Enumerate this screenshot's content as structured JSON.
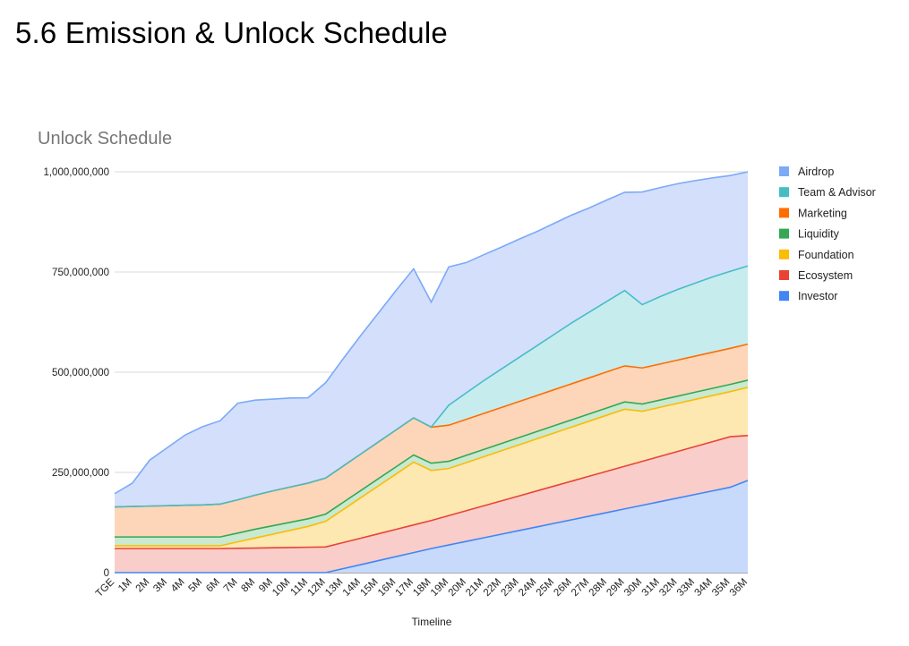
{
  "page": {
    "title": "5.6 Emission & Unlock Schedule"
  },
  "chart_data": {
    "type": "area",
    "stacked": true,
    "title": "Unlock Schedule",
    "xlabel": "Timeline",
    "ylabel": "",
    "ylim": [
      0,
      1000000000
    ],
    "yticks": [
      {
        "value": 0,
        "label": "0"
      },
      {
        "value": 250000000,
        "label": "250,000,000"
      },
      {
        "value": 500000000,
        "label": "500,000,000"
      },
      {
        "value": 750000000,
        "label": "750,000,000"
      },
      {
        "value": 1000000000,
        "label": "1,000,000,000"
      }
    ],
    "grid": true,
    "legend": "right",
    "categories": [
      "TGE",
      "1M",
      "2M",
      "3M",
      "4M",
      "5M",
      "6M",
      "7M",
      "8M",
      "9M",
      "10M",
      "11M",
      "12M",
      "13M",
      "14M",
      "15M",
      "16M",
      "17M",
      "18M",
      "19M",
      "20M",
      "21M",
      "22M",
      "23M",
      "24M",
      "25M",
      "26M",
      "27M",
      "28M",
      "29M",
      "30M",
      "31M",
      "32M",
      "33M",
      "34M",
      "35M",
      "36M"
    ],
    "series": [
      {
        "name": "Investor",
        "color": "#4285f4",
        "fill": "#c7dafb",
        "values": [
          0,
          0,
          0,
          0,
          0,
          0,
          0,
          0,
          0,
          0,
          0,
          0,
          0,
          10000000,
          20000000,
          30000000,
          40000000,
          50000000,
          60000000,
          69000000,
          78000000,
          87000000,
          96000000,
          105000000,
          114000000,
          123000000,
          132000000,
          141000000,
          150000000,
          159000000,
          168000000,
          177000000,
          186000000,
          195000000,
          204000000,
          213000000,
          230000000
        ]
      },
      {
        "name": "Ecosystem",
        "color": "#ea4335",
        "fill": "#f9cdca",
        "values": [
          60000000,
          60000000,
          60000000,
          60000000,
          60000000,
          60000000,
          60000000,
          60667000,
          61334000,
          62001000,
          62668000,
          63335000,
          64000000,
          65000000,
          66000000,
          67000000,
          68000000,
          69000000,
          70000000,
          73300000,
          76600000,
          79900000,
          83200000,
          86500000,
          89800000,
          93100000,
          96400000,
          99700000,
          103000000,
          106300000,
          109600000,
          112900000,
          116200000,
          119500000,
          122800000,
          126100000,
          112000000
        ]
      },
      {
        "name": "Foundation",
        "color": "#fbbc04",
        "fill": "#fde8b2",
        "values": [
          7000000,
          7000000,
          7000000,
          7000000,
          7000000,
          7000000,
          7000000,
          16000000,
          25000000,
          34000000,
          43000000,
          52000000,
          64000000,
          82500000,
          101000000,
          119500000,
          138000000,
          156500000,
          125000000,
          117500000,
          120000000,
          122500000,
          125000000,
          127500000,
          130000000,
          132500000,
          135000000,
          137500000,
          140000000,
          142500000,
          125000000,
          122500000,
          120000000,
          117500000,
          115000000,
          112500000,
          120000000
        ]
      },
      {
        "name": "Liquidity",
        "color": "#34a853",
        "fill": "#c9e9d0",
        "values": [
          22000000,
          22000000,
          22000000,
          22000000,
          22000000,
          22000000,
          22000000,
          22000000,
          22000000,
          21000000,
          20000000,
          19000000,
          18000000,
          18000000,
          18000000,
          18000000,
          18000000,
          18000000,
          18000000,
          18000000,
          18000000,
          18000000,
          18000000,
          18000000,
          18000000,
          18000000,
          18000000,
          18000000,
          18000000,
          18000000,
          18000000,
          18000000,
          18000000,
          18000000,
          18000000,
          18000000,
          18000000
        ]
      },
      {
        "name": "Marketing",
        "color": "#ff6d01",
        "fill": "#fdd6b9",
        "values": [
          75000000,
          76000000,
          77000000,
          78000000,
          79000000,
          80000000,
          82000000,
          83000000,
          85000000,
          87000000,
          88000000,
          89000000,
          90000000,
          90500000,
          91000000,
          91500000,
          92000000,
          92500000,
          90000000,
          90000000,
          90000000,
          90000000,
          90000000,
          90000000,
          90000000,
          90000000,
          90000000,
          90000000,
          90000000,
          90000000,
          90000000,
          90000000,
          90000000,
          90000000,
          90000000,
          90000000,
          90000000
        ]
      },
      {
        "name": "Team & Advisor",
        "color": "#46bdc6",
        "fill": "#c7ecee",
        "values": [
          0,
          0,
          0,
          0,
          0,
          0,
          0,
          0,
          0,
          0,
          0,
          0,
          0,
          0,
          0,
          0,
          0,
          0,
          0,
          50000000,
          66000000,
          82000000,
          96000000,
          110000000,
          124000000,
          138000000,
          152000000,
          164000000,
          176000000,
          188000000,
          158000000,
          168000000,
          176000000,
          182000000,
          188000000,
          192000000,
          195000000
        ]
      },
      {
        "name": "Airdrop",
        "color": "#7baaf7",
        "fill": "#d4dffc",
        "values": [
          33000000,
          58000000,
          115000000,
          145000000,
          175000000,
          195000000,
          208000000,
          241000000,
          237000000,
          229000000,
          222000000,
          213000000,
          238000000,
          268000000,
          296000000,
          322000000,
          348000000,
          372000000,
          312000000,
          345000000,
          325000000,
          314000000,
          304000000,
          295000000,
          285000000,
          277000000,
          269000000,
          260000000,
          253000000,
          245000000,
          281000000,
          272000000,
          264000000,
          256000000,
          247000000,
          239000000,
          235000000
        ]
      }
    ]
  }
}
